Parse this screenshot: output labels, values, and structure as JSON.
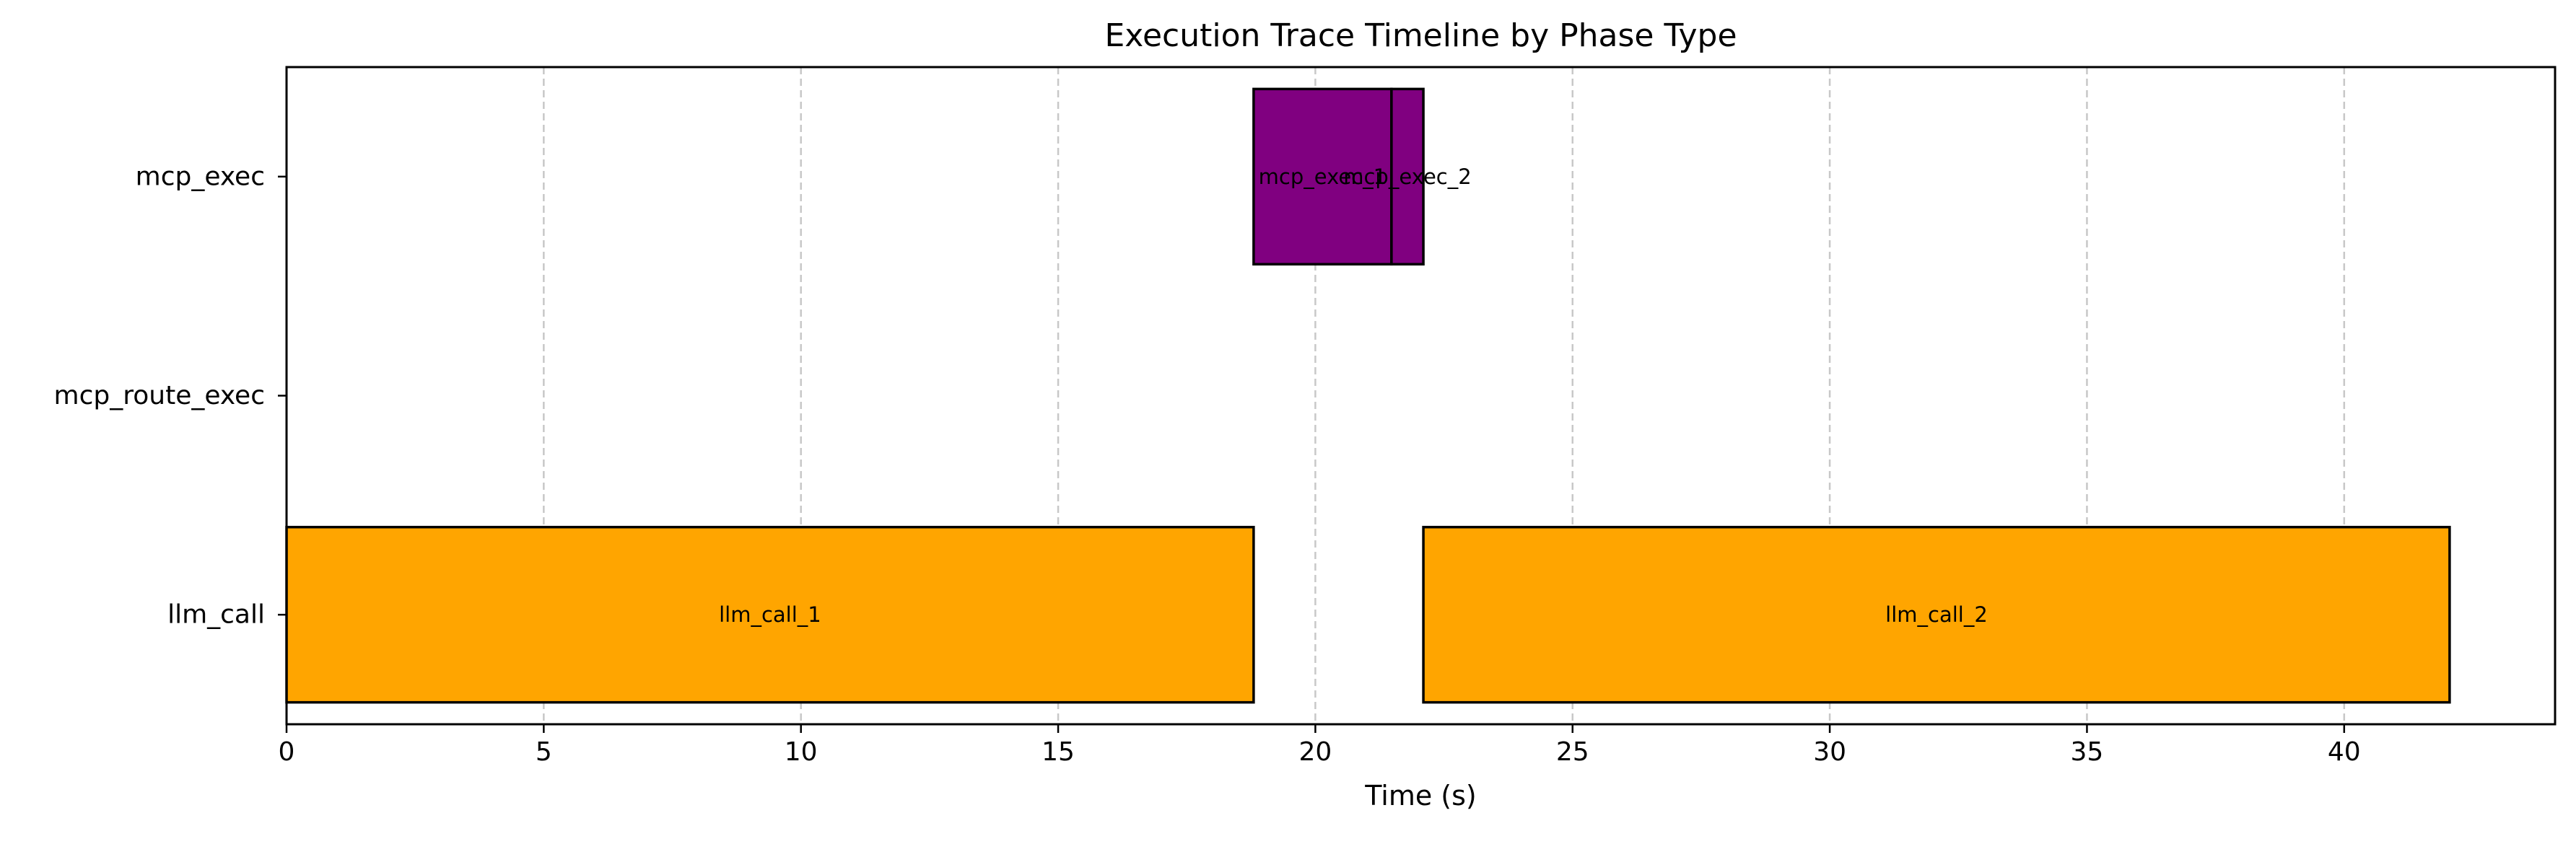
{
  "chart_data": {
    "type": "gantt",
    "title": "Execution Trace Timeline by Phase Type",
    "xlabel": "Time (s)",
    "ylabel": "",
    "xlim": [
      0,
      44.1
    ],
    "xticks": [
      0,
      5,
      10,
      15,
      20,
      25,
      30,
      35,
      40
    ],
    "grid": "x-dashed",
    "categories": [
      "mcp_exec",
      "mcp_route_exec",
      "llm_call"
    ],
    "colors": {
      "llm_call": "#FFA500",
      "mcp_exec": "#800080",
      "mcp_route_exec": "#800080"
    },
    "tasks": [
      {
        "label": "llm_call_1",
        "category": "llm_call",
        "start": 0,
        "end": 18.8
      },
      {
        "label": "mcp_exec_1",
        "category": "mcp_exec",
        "start": 18.8,
        "end": 21.48
      },
      {
        "label": "mcp_exec_2",
        "category": "mcp_exec",
        "start": 21.48,
        "end": 22.1
      },
      {
        "label": "llm_call_2",
        "category": "llm_call",
        "start": 22.1,
        "end": 42.05
      }
    ]
  }
}
